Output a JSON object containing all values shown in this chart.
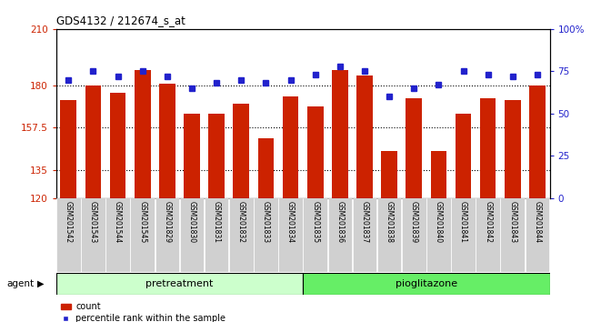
{
  "title": "GDS4132 / 212674_s_at",
  "samples": [
    "GSM201542",
    "GSM201543",
    "GSM201544",
    "GSM201545",
    "GSM201829",
    "GSM201830",
    "GSM201831",
    "GSM201832",
    "GSM201833",
    "GSM201834",
    "GSM201835",
    "GSM201836",
    "GSM201837",
    "GSM201838",
    "GSM201839",
    "GSM201840",
    "GSM201841",
    "GSM201842",
    "GSM201843",
    "GSM201844"
  ],
  "bar_values": [
    172,
    180,
    176,
    188,
    181,
    165,
    165,
    170,
    152,
    174,
    169,
    188,
    185,
    145,
    173,
    145,
    165,
    173,
    172,
    180
  ],
  "pct_values": [
    70,
    75,
    72,
    75,
    72,
    65,
    68,
    70,
    68,
    70,
    73,
    78,
    75,
    60,
    65,
    67,
    75,
    73,
    72,
    73
  ],
  "bar_color": "#cc2200",
  "pct_color": "#2222cc",
  "ylim_left": [
    120,
    210
  ],
  "ylim_right": [
    0,
    100
  ],
  "yticks_left": [
    120,
    135,
    157.5,
    180,
    210
  ],
  "ytick_labels_left": [
    "120",
    "135",
    "157.5",
    "180",
    "210"
  ],
  "ytick_vals_right": [
    0,
    25,
    50,
    75,
    100
  ],
  "ytick_labels_right": [
    "0",
    "25",
    "50",
    "75",
    "100%"
  ],
  "hlines": [
    135,
    157.5,
    180
  ],
  "group1_n": 10,
  "group2_n": 10,
  "group1_label": "pretreatment",
  "group2_label": "pioglitazone",
  "group1_color": "#ccffcc",
  "group2_color": "#66ee66",
  "legend_count": "count",
  "legend_pct": "percentile rank within the sample",
  "agent_label": "agent",
  "bar_width": 0.65
}
